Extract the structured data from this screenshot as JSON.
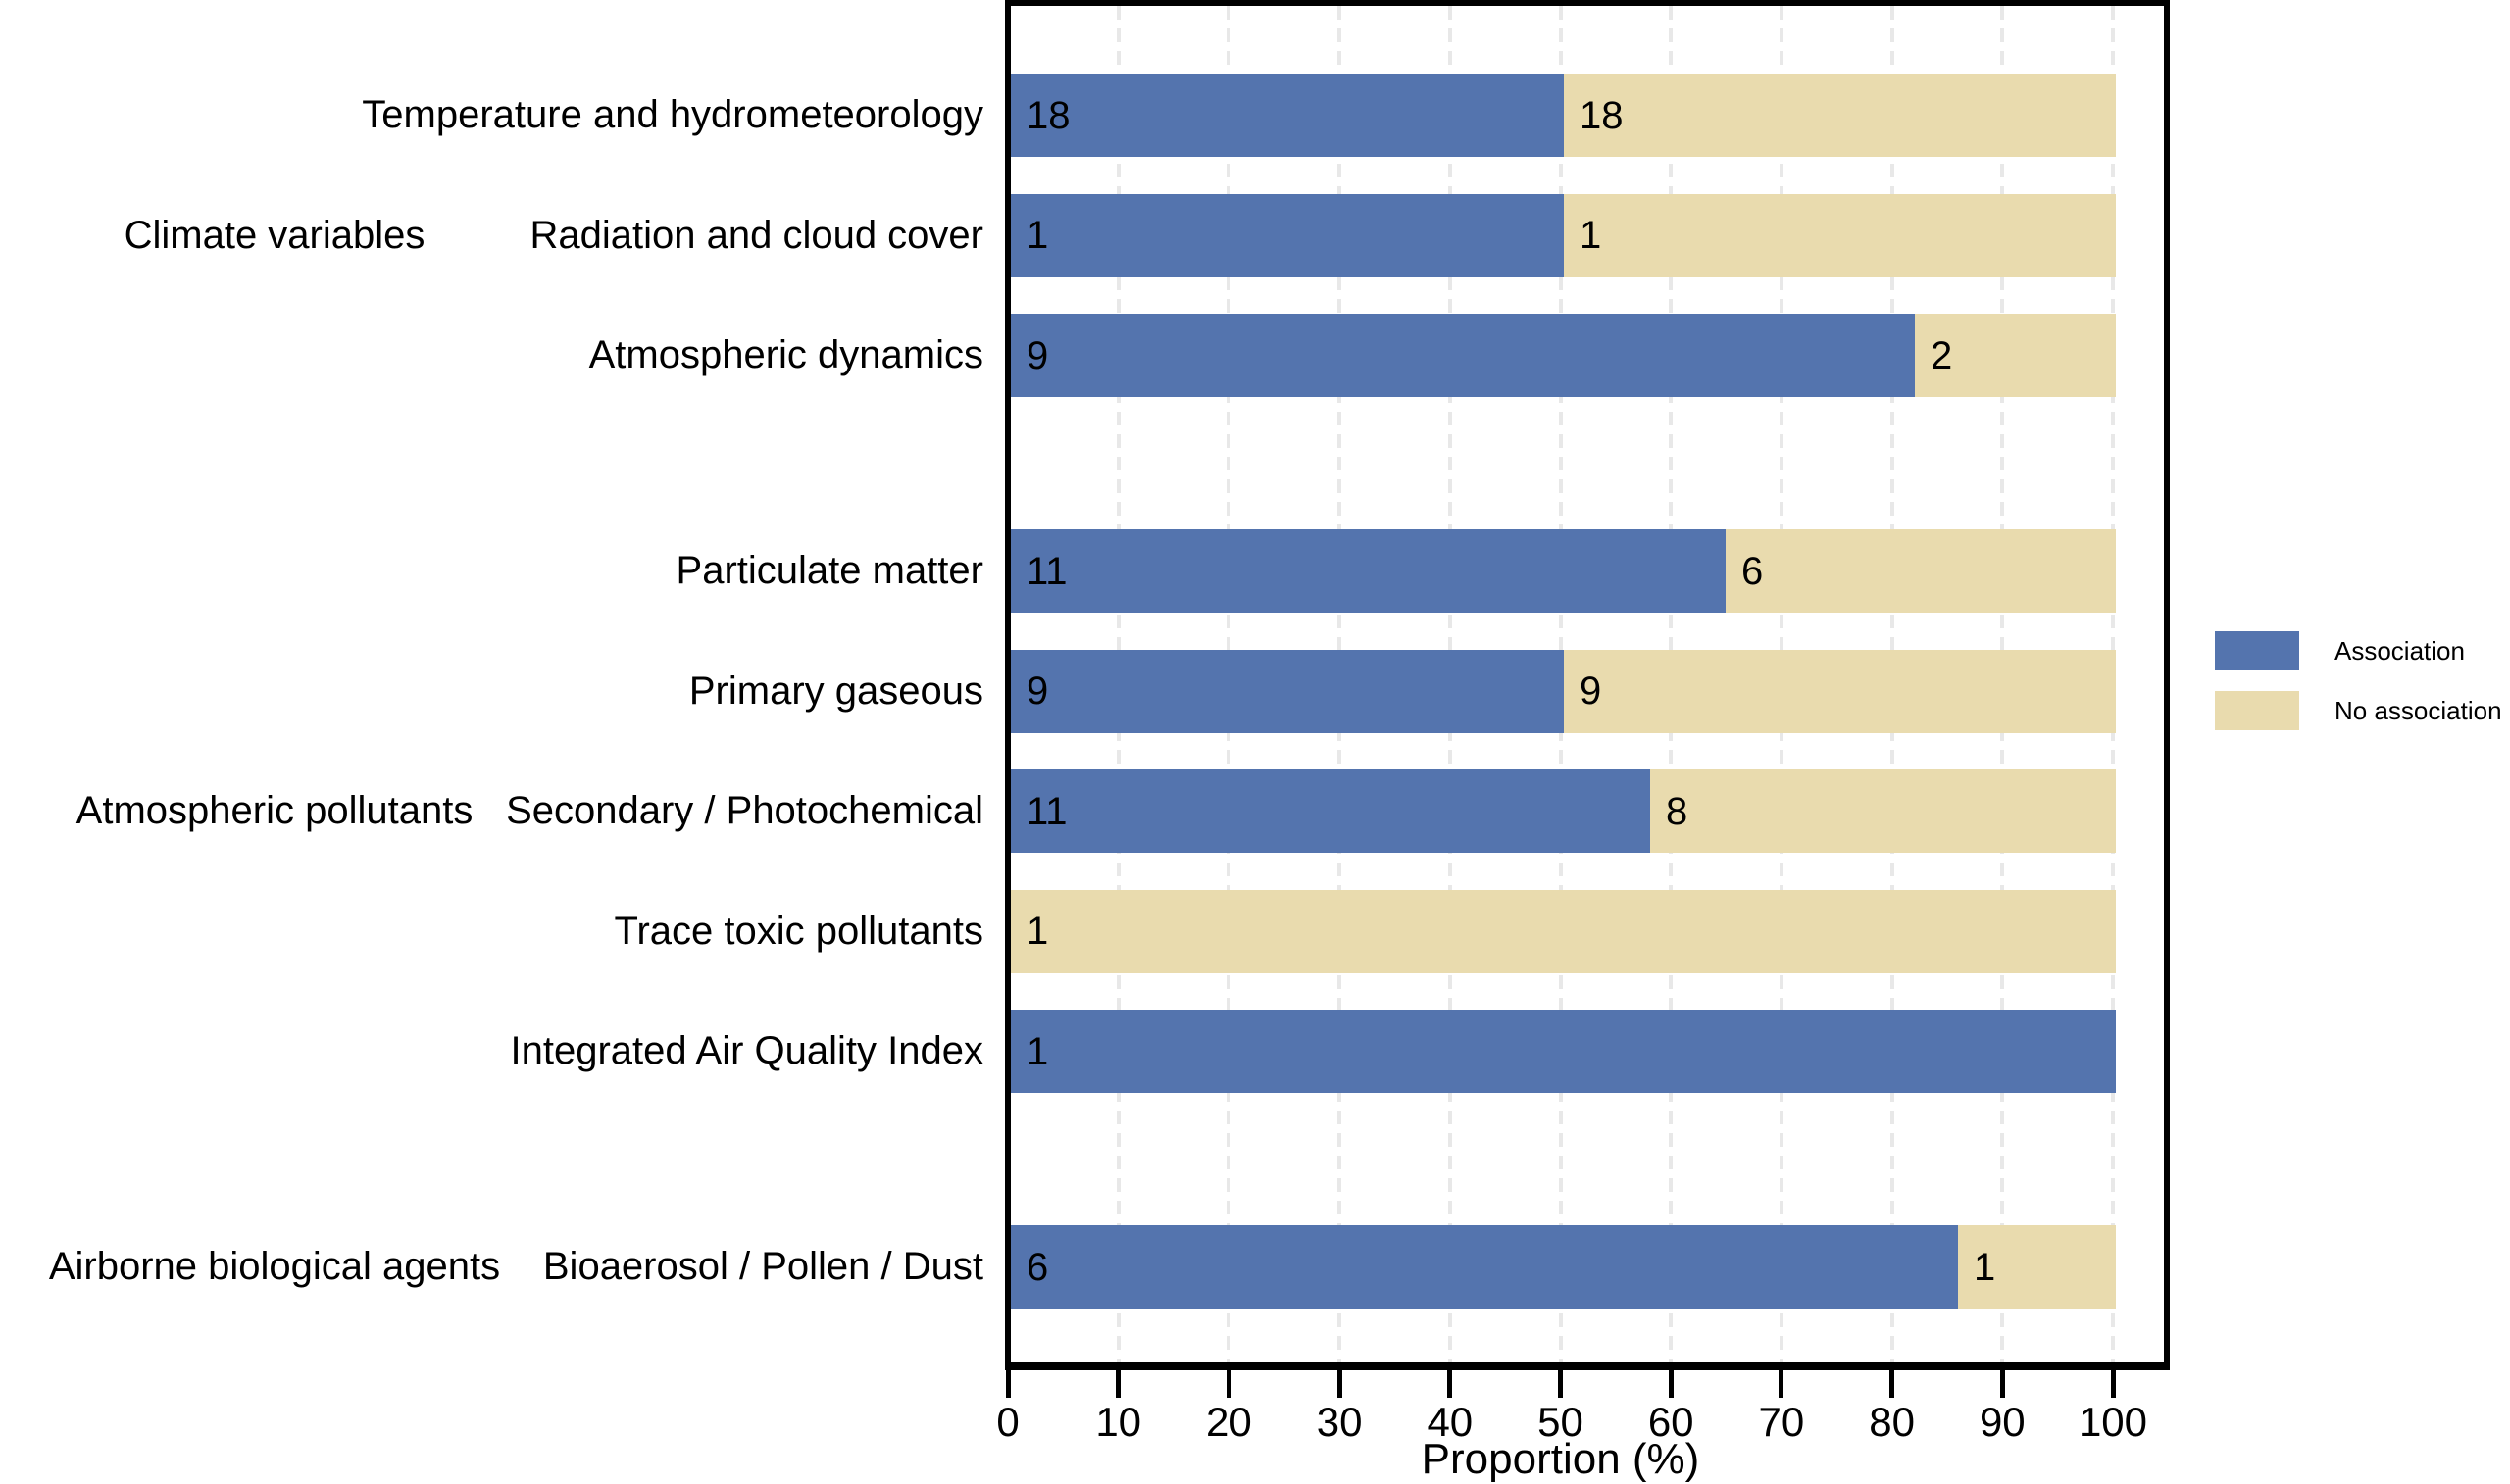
{
  "chart_data": {
    "type": "bar",
    "variant": "horizontal-stacked-percent",
    "title": "",
    "xlabel": "Proportion (%)",
    "xlim": [
      0,
      100
    ],
    "x_ticks": [
      0,
      10,
      20,
      30,
      40,
      50,
      60,
      70,
      80,
      90,
      100
    ],
    "grid": "vertical-dashed-light-gray",
    "series": [
      {
        "name": "Association",
        "color": "#5474ae"
      },
      {
        "name": "No association",
        "color": "#e9dbae"
      }
    ],
    "legend": {
      "position": "right"
    },
    "groups": [
      {
        "label": "Climate variables",
        "rows": [
          {
            "category": "Temperature and hydrometeorology",
            "association": 18,
            "no_association": 18
          },
          {
            "category": "Radiation and cloud cover",
            "association": 1,
            "no_association": 1
          },
          {
            "category": "Atmospheric dynamics",
            "association": 9,
            "no_association": 2
          }
        ]
      },
      {
        "label": "Atmospheric pollutants",
        "rows": [
          {
            "category": "Particulate matter",
            "association": 11,
            "no_association": 6
          },
          {
            "category": "Primary gaseous",
            "association": 9,
            "no_association": 9
          },
          {
            "category": "Secondary / Photochemical",
            "association": 11,
            "no_association": 8
          },
          {
            "category": "Trace toxic pollutants",
            "association": 0,
            "no_association": 1
          },
          {
            "category": "Integrated Air Quality Index",
            "association": 1,
            "no_association": 0
          }
        ]
      },
      {
        "label": "Airborne biological agents",
        "rows": [
          {
            "category": "Bioaerosol / Pollen / Dust",
            "association": 6,
            "no_association": 1
          }
        ]
      }
    ]
  }
}
